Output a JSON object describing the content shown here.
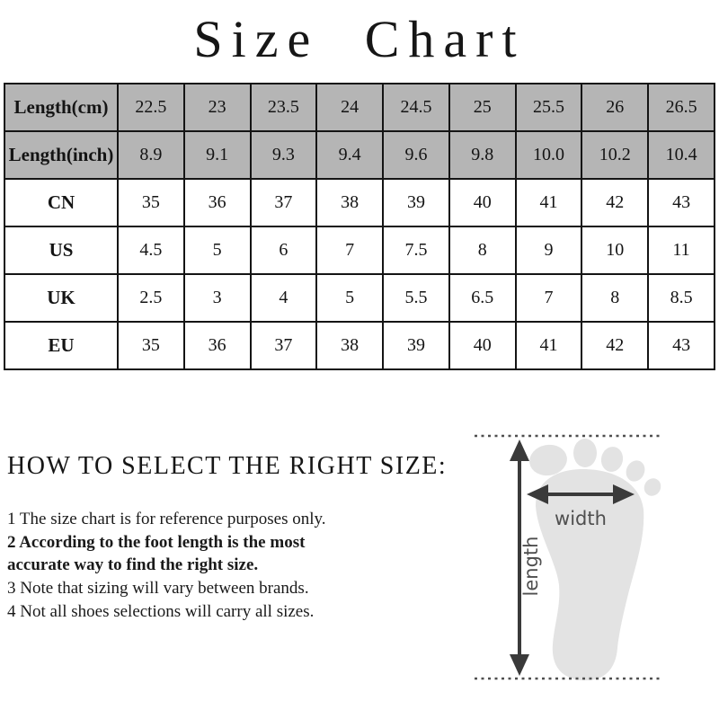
{
  "title": "Size Chart",
  "size_table": {
    "rows": [
      {
        "label": "Length(cm)",
        "shaded": true,
        "values": [
          "22.5",
          "23",
          "23.5",
          "24",
          "24.5",
          "25",
          "25.5",
          "26",
          "26.5"
        ]
      },
      {
        "label": "Length(inch)",
        "shaded": true,
        "values": [
          "8.9",
          "9.1",
          "9.3",
          "9.4",
          "9.6",
          "9.8",
          "10.0",
          "10.2",
          "10.4"
        ]
      },
      {
        "label": "CN",
        "shaded": false,
        "values": [
          "35",
          "36",
          "37",
          "38",
          "39",
          "40",
          "41",
          "42",
          "43"
        ]
      },
      {
        "label": "US",
        "shaded": false,
        "values": [
          "4.5",
          "5",
          "6",
          "7",
          "7.5",
          "8",
          "9",
          "10",
          "11"
        ]
      },
      {
        "label": "UK",
        "shaded": false,
        "values": [
          "2.5",
          "3",
          "4",
          "5",
          "5.5",
          "6.5",
          "7",
          "8",
          "8.5"
        ]
      },
      {
        "label": "EU",
        "shaded": false,
        "values": [
          "35",
          "36",
          "37",
          "38",
          "39",
          "40",
          "41",
          "42",
          "43"
        ]
      }
    ]
  },
  "guide": {
    "heading": "HOW TO SELECT THE RIGHT SIZE:",
    "items": [
      {
        "text": "1 The size chart is for reference purposes only.",
        "bold": false
      },
      {
        "text": "2 According to the foot length is the most accurate way to find the right size.",
        "bold": true
      },
      {
        "text": "3 Note that sizing will vary between brands.",
        "bold": false
      },
      {
        "text": "4 Not all shoes selections will carry all sizes.",
        "bold": false
      }
    ]
  },
  "diagram": {
    "width_label": "width",
    "length_label": "length"
  },
  "colors": {
    "header_bg": "#b5b5b5",
    "table_border": "#141414",
    "foot_fill": "#e3e3e3",
    "arrow": "#3a3a3a",
    "dotted_line": "#4f4f4f",
    "diagram_label": "#4f4f4f"
  }
}
